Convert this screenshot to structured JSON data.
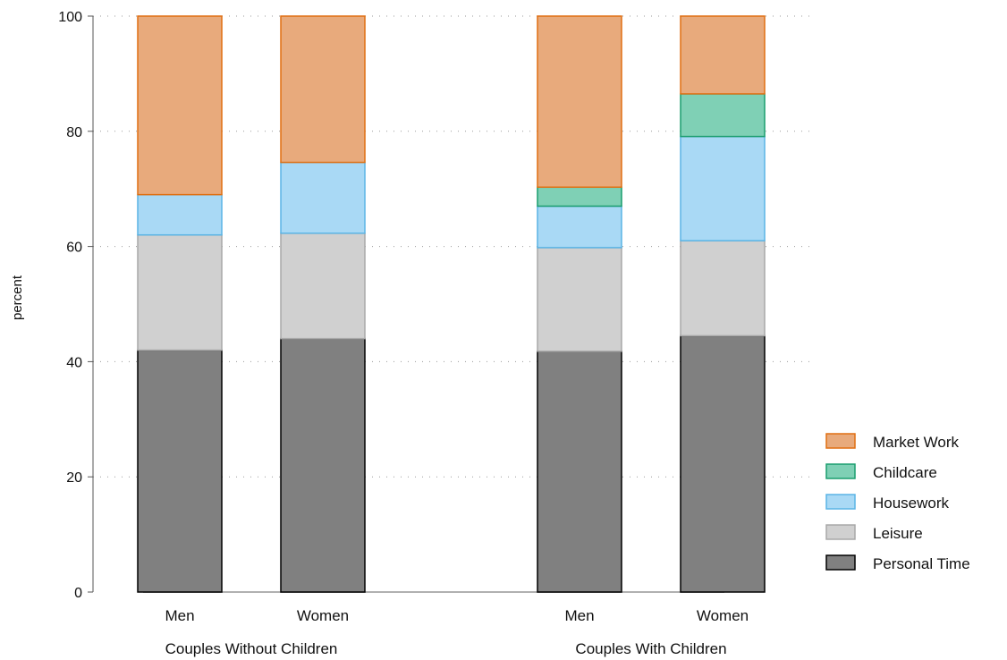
{
  "chart_data": {
    "type": "bar",
    "stacked": true,
    "ylabel": "percent",
    "ylim": [
      0,
      100
    ],
    "yticks": [
      0,
      20,
      40,
      60,
      80,
      100
    ],
    "grid": true,
    "legend_position": "right",
    "groups": [
      {
        "label": "Couples Without Children",
        "categories": [
          "Men",
          "Women"
        ]
      },
      {
        "label": "Couples With Children",
        "categories": [
          "Men",
          "Women"
        ]
      }
    ],
    "categories": [
      "Men",
      "Women",
      "Men",
      "Women"
    ],
    "series": [
      {
        "name": "Personal Time",
        "color": "#808080",
        "stroke": "#000000",
        "values": [
          42.0,
          44.0,
          41.8,
          44.5
        ]
      },
      {
        "name": "Leisure",
        "color": "#d0d0d0",
        "stroke": "#a8a8a8",
        "values": [
          20.0,
          18.3,
          18.0,
          16.5
        ]
      },
      {
        "name": "Housework",
        "color": "#a9d9f5",
        "stroke": "#5ab4e5",
        "values": [
          7.0,
          12.3,
          7.2,
          18.1
        ]
      },
      {
        "name": "Childcare",
        "color": "#7fd0b5",
        "stroke": "#1a9e6e",
        "values": [
          0.0,
          0.0,
          3.3,
          7.4
        ]
      },
      {
        "name": "Market Work",
        "color": "#e8aa7c",
        "stroke": "#e06f12",
        "values": [
          31.0,
          25.4,
          29.7,
          13.5
        ]
      }
    ],
    "legend_order": [
      "Market Work",
      "Childcare",
      "Housework",
      "Leisure",
      "Personal Time"
    ]
  }
}
